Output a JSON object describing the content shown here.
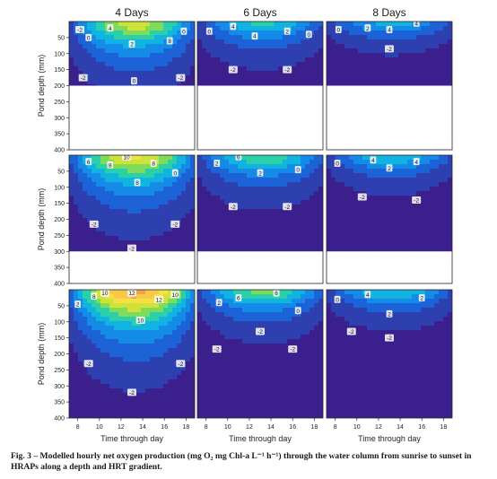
{
  "figure": {
    "caption_prefix": "Fig. 3",
    "caption_text": " – Modelled hourly net oxygen production (mg O₂ mg Chl-a L⁻¹ h⁻¹) through the water column from sunrise to sunset in HRAPs along a depth and HRT gradient."
  },
  "chart_data": {
    "type": "heatmap",
    "column_titles": [
      "4 Days",
      "6 Days",
      "8 Days"
    ],
    "ylabel": "Pond depth (mm)",
    "xlabel": "Time through day",
    "x_ticks": [
      8,
      10,
      12,
      14,
      16,
      18
    ],
    "x_range": [
      7.2,
      18.8
    ],
    "y_ticks": [
      50,
      100,
      150,
      200,
      250,
      300,
      350,
      400
    ],
    "y_range": [
      0,
      400
    ],
    "row_pond_depths": [
      200,
      300,
      400
    ],
    "palette": [
      "#3b1f8c",
      "#2e3fb0",
      "#1c63d8",
      "#148be6",
      "#11b3e0",
      "#2bd0a8",
      "#7fdc5a",
      "#cfe23a",
      "#f4e244",
      "#f9c84a",
      "#f5a24c",
      "#ef7d45",
      "#e0553c"
    ],
    "panels": [
      {
        "row": 0,
        "col": 0,
        "hrt": "4 Days",
        "depth": 200,
        "peak": 8.5,
        "pen": 170,
        "labels": [
          {
            "t": 8.2,
            "d": 25,
            "v": "-2"
          },
          {
            "t": 9.0,
            "d": 50,
            "v": "0"
          },
          {
            "t": 11.0,
            "d": 20,
            "v": "4"
          },
          {
            "t": 13.0,
            "d": 70,
            "v": "2"
          },
          {
            "t": 16.5,
            "d": 60,
            "v": "8"
          },
          {
            "t": 17.8,
            "d": 30,
            "v": "0"
          },
          {
            "t": 8.5,
            "d": 175,
            "v": "-2"
          },
          {
            "t": 13.2,
            "d": 185,
            "v": "0"
          },
          {
            "t": 17.5,
            "d": 175,
            "v": "-2"
          }
        ]
      },
      {
        "row": 0,
        "col": 1,
        "hrt": "6 Days",
        "depth": 200,
        "peak": 5.2,
        "pen": 115,
        "labels": [
          {
            "t": 8.3,
            "d": 30,
            "v": "0"
          },
          {
            "t": 10.5,
            "d": 15,
            "v": "4"
          },
          {
            "t": 12.5,
            "d": 45,
            "v": "4"
          },
          {
            "t": 15.5,
            "d": 30,
            "v": "2"
          },
          {
            "t": 17.5,
            "d": 40,
            "v": "0"
          },
          {
            "t": 10.5,
            "d": 150,
            "v": "-2"
          },
          {
            "t": 15.5,
            "d": 150,
            "v": "-2"
          }
        ]
      },
      {
        "row": 0,
        "col": 2,
        "hrt": "8 Days",
        "depth": 200,
        "peak": 4.0,
        "pen": 80,
        "labels": [
          {
            "t": 8.3,
            "d": 25,
            "v": "0"
          },
          {
            "t": 11.0,
            "d": 20,
            "v": "2"
          },
          {
            "t": 13.0,
            "d": 25,
            "v": "4"
          },
          {
            "t": 15.5,
            "d": 5,
            "v": "4"
          },
          {
            "t": 13.0,
            "d": 85,
            "v": "-2"
          }
        ]
      },
      {
        "row": 1,
        "col": 0,
        "hrt": "4 Days",
        "depth": 300,
        "peak": 9.5,
        "pen": 185,
        "labels": [
          {
            "t": 9.0,
            "d": 20,
            "v": "6"
          },
          {
            "t": 11.0,
            "d": 30,
            "v": "8"
          },
          {
            "t": 12.5,
            "d": 5,
            "v": "10"
          },
          {
            "t": 15.0,
            "d": 25,
            "v": "8"
          },
          {
            "t": 13.5,
            "d": 85,
            "v": "8"
          },
          {
            "t": 17.0,
            "d": 55,
            "v": "0"
          },
          {
            "t": 9.5,
            "d": 215,
            "v": "-2"
          },
          {
            "t": 13.0,
            "d": 290,
            "v": "-2"
          },
          {
            "t": 17.0,
            "d": 215,
            "v": "-2"
          }
        ]
      },
      {
        "row": 1,
        "col": 1,
        "hrt": "6 Days",
        "depth": 300,
        "peak": 6.2,
        "pen": 125,
        "labels": [
          {
            "t": 9.0,
            "d": 25,
            "v": "2"
          },
          {
            "t": 11.0,
            "d": 5,
            "v": "6"
          },
          {
            "t": 13.0,
            "d": 55,
            "v": "2"
          },
          {
            "t": 16.5,
            "d": 45,
            "v": "0"
          },
          {
            "t": 10.5,
            "d": 160,
            "v": "-2"
          },
          {
            "t": 15.5,
            "d": 160,
            "v": "-2"
          }
        ]
      },
      {
        "row": 1,
        "col": 2,
        "hrt": "8 Days",
        "depth": 300,
        "peak": 4.8,
        "pen": 95,
        "labels": [
          {
            "t": 8.2,
            "d": 25,
            "v": "0"
          },
          {
            "t": 11.5,
            "d": 15,
            "v": "4"
          },
          {
            "t": 13.0,
            "d": 40,
            "v": "2"
          },
          {
            "t": 15.5,
            "d": 20,
            "v": "4"
          },
          {
            "t": 10.5,
            "d": 130,
            "v": "-2"
          },
          {
            "t": 15.5,
            "d": 140,
            "v": "-2"
          }
        ]
      },
      {
        "row": 2,
        "col": 0,
        "hrt": "4 Days",
        "depth": 400,
        "peak": 12.6,
        "pen": 210,
        "labels": [
          {
            "t": 8.0,
            "d": 45,
            "v": "2"
          },
          {
            "t": 9.5,
            "d": 20,
            "v": "8"
          },
          {
            "t": 10.5,
            "d": 10,
            "v": "10"
          },
          {
            "t": 13.0,
            "d": 10,
            "v": "12"
          },
          {
            "t": 15.5,
            "d": 30,
            "v": "12"
          },
          {
            "t": 17.0,
            "d": 15,
            "v": "10"
          },
          {
            "t": 13.8,
            "d": 95,
            "v": "10"
          },
          {
            "t": 9.0,
            "d": 230,
            "v": "-2"
          },
          {
            "t": 13.0,
            "d": 320,
            "v": "-2"
          },
          {
            "t": 17.5,
            "d": 230,
            "v": "-2"
          }
        ]
      },
      {
        "row": 2,
        "col": 1,
        "hrt": "6 Days",
        "depth": 400,
        "peak": 6.8,
        "pen": 120,
        "labels": [
          {
            "t": 9.2,
            "d": 40,
            "v": "2"
          },
          {
            "t": 11.0,
            "d": 25,
            "v": "6"
          },
          {
            "t": 14.5,
            "d": 10,
            "v": "6"
          },
          {
            "t": 13.0,
            "d": 130,
            "v": "-2"
          },
          {
            "t": 16.5,
            "d": 65,
            "v": "0"
          },
          {
            "t": 9.0,
            "d": 185,
            "v": "-2"
          },
          {
            "t": 16.0,
            "d": 185,
            "v": "-2"
          }
        ]
      },
      {
        "row": 2,
        "col": 2,
        "hrt": "8 Days",
        "depth": 400,
        "peak": 5.0,
        "pen": 95,
        "labels": [
          {
            "t": 8.2,
            "d": 30,
            "v": "0"
          },
          {
            "t": 11.0,
            "d": 15,
            "v": "4"
          },
          {
            "t": 13.0,
            "d": 75,
            "v": "2"
          },
          {
            "t": 16.0,
            "d": 25,
            "v": "2"
          },
          {
            "t": 9.5,
            "d": 130,
            "v": "-2"
          },
          {
            "t": 13.0,
            "d": 150,
            "v": "-2"
          }
        ]
      }
    ]
  }
}
